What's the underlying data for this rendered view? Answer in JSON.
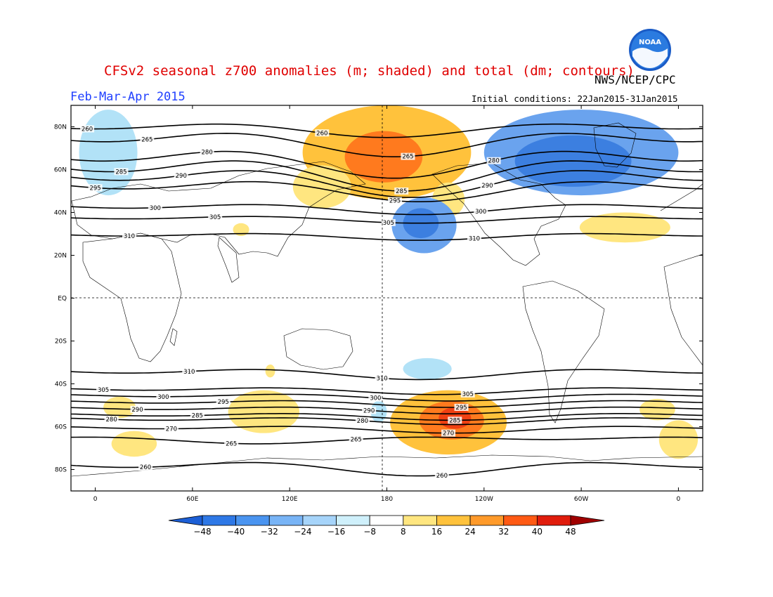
{
  "header": {
    "title": "CFSv2 seasonal z700 anomalies (m; shaded) and total (dm; contours)",
    "agency": "NWS/NCEP/CPC",
    "period": "Feb-Mar-Apr 2015",
    "initial_conditions": "Initial conditions: 22Jan2015-31Jan2015"
  },
  "logo": {
    "text": "NOAA",
    "icon": "noaa-logo"
  },
  "map": {
    "lat_ticks": [
      {
        "lat": 80,
        "label": "80N"
      },
      {
        "lat": 60,
        "label": "60N"
      },
      {
        "lat": 40,
        "label": "40N"
      },
      {
        "lat": 20,
        "label": "20N"
      },
      {
        "lat": 0,
        "label": "EQ"
      },
      {
        "lat": -20,
        "label": "20S"
      },
      {
        "lat": -40,
        "label": "40S"
      },
      {
        "lat": -60,
        "label": "60S"
      },
      {
        "lat": -80,
        "label": "80S"
      }
    ],
    "lon_ticks": [
      {
        "lon": 0,
        "label": "0"
      },
      {
        "lon": 60,
        "label": "60E"
      },
      {
        "lon": 120,
        "label": "120E"
      },
      {
        "lon": 180,
        "label": "180"
      },
      {
        "lon": 240,
        "label": "120W"
      },
      {
        "lon": 300,
        "label": "60W"
      },
      {
        "lon": 360,
        "label": "0"
      }
    ],
    "anomalies": [
      {
        "lon": 180,
        "lat": 68,
        "rlon": 52,
        "rlat": 22,
        "value": 24
      },
      {
        "lon": 178,
        "lat": 66,
        "rlon": 24,
        "rlat": 12,
        "value": 32
      },
      {
        "lon": 140,
        "lat": 52,
        "rlon": 18,
        "rlat": 10,
        "value": 16
      },
      {
        "lon": 218,
        "lat": 46,
        "rlon": 10,
        "rlat": 8,
        "value": 16
      },
      {
        "lon": 300,
        "lat": 68,
        "rlon": 60,
        "rlat": 20,
        "value": -24
      },
      {
        "lon": 295,
        "lat": 64,
        "rlon": 36,
        "rlat": 12,
        "value": -32
      },
      {
        "lon": 8,
        "lat": 68,
        "rlon": 18,
        "rlat": 20,
        "value": -16
      },
      {
        "lon": 203,
        "lat": 34,
        "rlon": 20,
        "rlat": 13,
        "value": -24
      },
      {
        "lon": 201,
        "lat": 35,
        "rlon": 11,
        "rlat": 7,
        "value": -32
      },
      {
        "lon": 327,
        "lat": 33,
        "rlon": 28,
        "rlat": 7,
        "value": 16
      },
      {
        "lon": 90,
        "lat": 32,
        "rlon": 5,
        "rlat": 3,
        "value": 16
      },
      {
        "lon": 218,
        "lat": -58,
        "rlon": 36,
        "rlat": 15,
        "value": 24
      },
      {
        "lon": 220,
        "lat": -57,
        "rlon": 20,
        "rlat": 9,
        "value": 32
      },
      {
        "lon": 222,
        "lat": -56,
        "rlon": 10,
        "rlat": 5,
        "value": 40
      },
      {
        "lon": 104,
        "lat": -53,
        "rlon": 22,
        "rlat": 10,
        "value": 16
      },
      {
        "lon": 15,
        "lat": -51,
        "rlon": 10,
        "rlat": 5,
        "value": 16
      },
      {
        "lon": 24,
        "lat": -68,
        "rlon": 14,
        "rlat": 6,
        "value": 16
      },
      {
        "lon": 347,
        "lat": -52,
        "rlon": 11,
        "rlat": 5,
        "value": 16
      },
      {
        "lon": 360,
        "lat": -66,
        "rlon": 12,
        "rlat": 9,
        "value": 16
      },
      {
        "lon": 205,
        "lat": -33,
        "rlon": 15,
        "rlat": 5,
        "value": -16
      },
      {
        "lon": 175,
        "lat": -53,
        "rlon": 5,
        "rlat": 5,
        "value": -16
      },
      {
        "lon": 108,
        "lat": -34,
        "rlon": 3,
        "rlat": 3,
        "value": 16
      }
    ],
    "contours": [
      {
        "label": "260",
        "base": 79,
        "amp": 4,
        "phase": 180
      },
      {
        "label": "265",
        "base": 73,
        "amp": 7,
        "phase": 185
      },
      {
        "label": "280",
        "base": 64,
        "amp": 8,
        "phase": 185
      },
      {
        "label": "285",
        "base": 59,
        "amp": 9,
        "phase": 190
      },
      {
        "label": "290",
        "base": 55,
        "amp": 8,
        "phase": 195
      },
      {
        "label": "295",
        "base": 51,
        "amp": 6,
        "phase": 200
      },
      {
        "label": "300",
        "base": 42,
        "amp": 3,
        "phase": 200
      },
      {
        "label": "305",
        "base": 37,
        "amp": 2,
        "phase": 200
      },
      {
        "label": "310",
        "base": 29,
        "amp": 2,
        "phase": 200
      },
      {
        "label": "310",
        "base": -35,
        "amp": 3,
        "phase": 200
      },
      {
        "label": "305",
        "base": -43,
        "amp": 2,
        "phase": 210
      },
      {
        "label": "300",
        "base": -46,
        "amp": 2,
        "phase": 220
      },
      {
        "label": "295",
        "base": -49,
        "amp": 2,
        "phase": 220
      },
      {
        "label": "290",
        "base": -52,
        "amp": 2,
        "phase": 220
      },
      {
        "label": "285",
        "base": -55,
        "amp": 2,
        "phase": 220
      },
      {
        "label": "280",
        "base": -57,
        "amp": 2,
        "phase": 220
      },
      {
        "label": "270",
        "base": -61,
        "amp": 2,
        "phase": 220
      },
      {
        "label": "265",
        "base": -66,
        "amp": 2,
        "phase": 100
      },
      {
        "label": "260",
        "base": -79,
        "amp": 4,
        "phase": 200
      }
    ]
  },
  "colorbar": {
    "levels": [
      "-48",
      "-40",
      "-32",
      "-24",
      "-16",
      "-8",
      "8",
      "16",
      "24",
      "32",
      "40",
      "48"
    ],
    "colors": [
      "#1c5fd6",
      "#2e78e6",
      "#4a94f0",
      "#78b4f6",
      "#a6d4fa",
      "#cff0fb",
      "#ffffff",
      "#ffe680",
      "#ffc23c",
      "#ff9a2a",
      "#ff5a14",
      "#e01c0c",
      "#a00000"
    ]
  },
  "anomaly_colors": {
    "-32": "#3c7fe0",
    "-24": "#6aa3ee",
    "-16": "#b2e2f7",
    "16": "#ffe680",
    "24": "#ffc23c",
    "32": "#ff7a1e",
    "40": "#f04012"
  }
}
